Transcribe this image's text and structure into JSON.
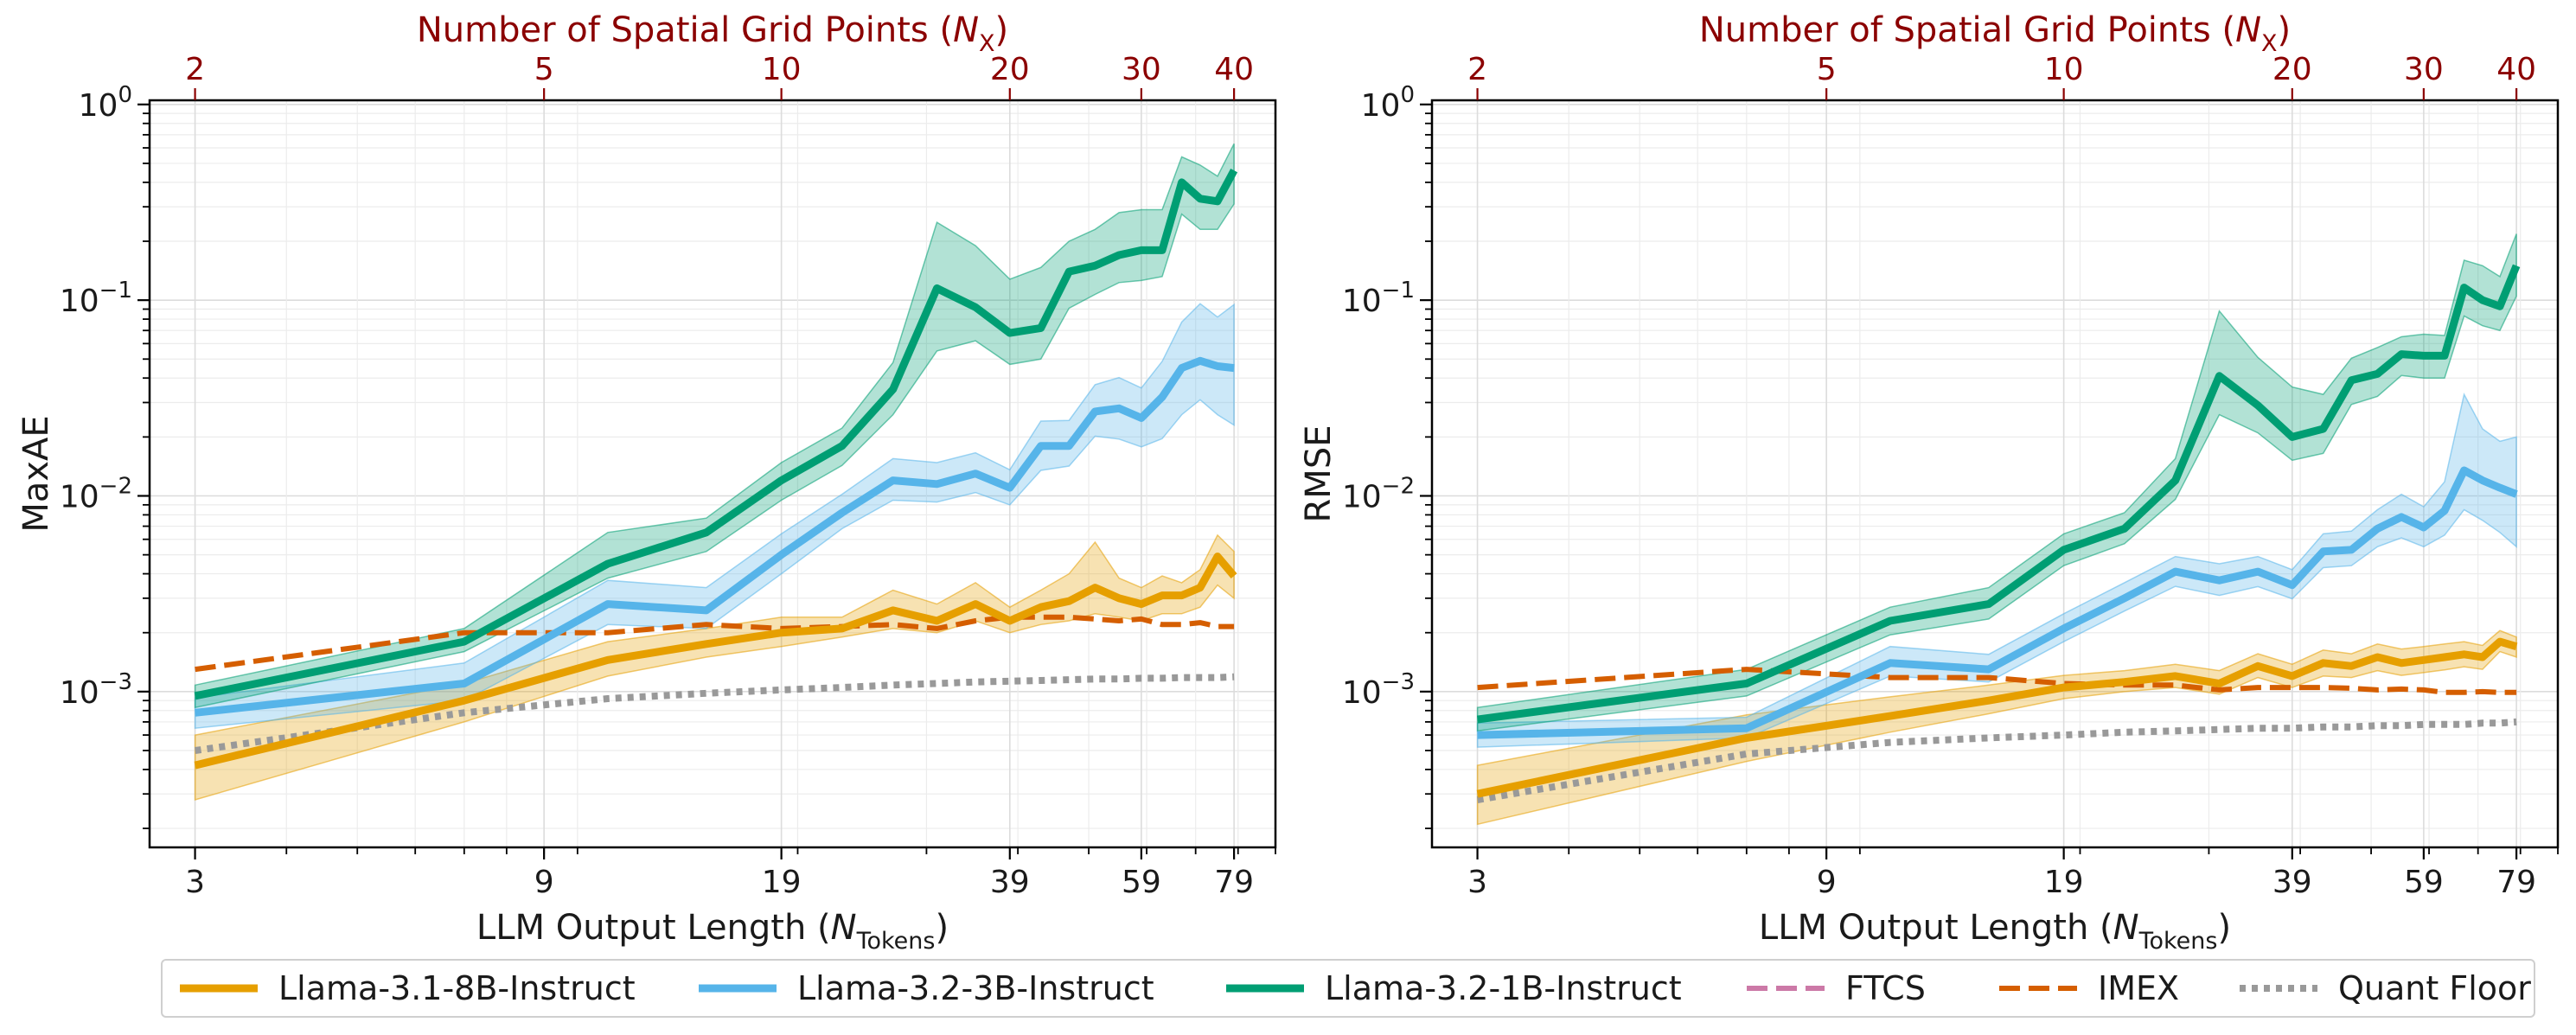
{
  "chart_data": [
    {
      "type": "line",
      "panel": "left",
      "ylabel": "MaxAE",
      "xlabel": "LLM Output Length",
      "xlabel_sym": "N",
      "xlabel_sub": "Tokens",
      "top_xlabel": "Number of Spatial Grid Points",
      "top_xlabel_sym": "N",
      "top_xlabel_sub": "X",
      "xscale": "log",
      "yscale": "log",
      "xlim": [
        2.6,
        90
      ],
      "ylim": [
        0.00016,
        1.05
      ],
      "x_ticks": [
        3,
        9,
        19,
        39,
        59,
        79
      ],
      "x_tick_labels": [
        "3",
        "9",
        "19",
        "39",
        "59",
        "79"
      ],
      "top_ticks": [
        2,
        5,
        10,
        20,
        30,
        40
      ],
      "top_tick_labels": [
        "2",
        "5",
        "10",
        "20",
        "30",
        "40"
      ],
      "y_ticks": [
        0.001,
        0.01,
        0.1,
        1
      ],
      "y_tick_labels": [
        [
          "10",
          "−3"
        ],
        [
          "10",
          "−2"
        ],
        [
          "10",
          "−1"
        ],
        [
          "10",
          "0"
        ]
      ],
      "grid": true,
      "series": [
        {
          "name": "Llama-3.1-8B-Instruct",
          "style": "solid",
          "band": true,
          "x": [
            3,
            7,
            11,
            15,
            19,
            23,
            27,
            31,
            35,
            39,
            43,
            47,
            51,
            55,
            59,
            63,
            67,
            71,
            75,
            79
          ],
          "y": [
            0.00042,
            0.0009,
            0.00145,
            0.00175,
            0.002,
            0.0021,
            0.0026,
            0.0023,
            0.0028,
            0.0023,
            0.0027,
            0.0029,
            0.0034,
            0.003,
            0.0028,
            0.0031,
            0.0031,
            0.0034,
            0.0049,
            0.0039
          ],
          "lo": [
            0.00028,
            0.0007,
            0.0012,
            0.0015,
            0.0017,
            0.0019,
            0.0021,
            0.002,
            0.0023,
            0.002,
            0.0022,
            0.0023,
            0.0025,
            0.0024,
            0.0023,
            0.0025,
            0.0025,
            0.0027,
            0.0035,
            0.003
          ],
          "hi": [
            0.0006,
            0.0011,
            0.0018,
            0.0021,
            0.0024,
            0.0024,
            0.0033,
            0.0028,
            0.0036,
            0.0027,
            0.0033,
            0.004,
            0.0058,
            0.0038,
            0.0034,
            0.0039,
            0.0036,
            0.0042,
            0.0063,
            0.0052
          ]
        },
        {
          "name": "Llama-3.2-3B-Instruct",
          "style": "solid",
          "band": true,
          "x": [
            3,
            7,
            11,
            15,
            19,
            23,
            27,
            31,
            35,
            39,
            43,
            47,
            51,
            55,
            59,
            63,
            67,
            71,
            75,
            79
          ],
          "y": [
            0.00078,
            0.0011,
            0.0028,
            0.0026,
            0.005,
            0.0082,
            0.012,
            0.0115,
            0.013,
            0.011,
            0.018,
            0.018,
            0.027,
            0.028,
            0.025,
            0.032,
            0.045,
            0.049,
            0.046,
            0.045
          ],
          "lo": [
            0.00065,
            0.0009,
            0.0022,
            0.0021,
            0.004,
            0.0068,
            0.0095,
            0.0093,
            0.0104,
            0.009,
            0.0135,
            0.0142,
            0.0202,
            0.0195,
            0.0178,
            0.0196,
            0.026,
            0.031,
            0.026,
            0.023
          ],
          "hi": [
            0.00093,
            0.0014,
            0.0037,
            0.0034,
            0.0064,
            0.0102,
            0.0155,
            0.0148,
            0.0166,
            0.0136,
            0.0241,
            0.0243,
            0.037,
            0.0402,
            0.0356,
            0.0487,
            0.0773,
            0.096,
            0.082,
            0.095
          ]
        },
        {
          "name": "Llama-3.2-1B-Instruct",
          "style": "solid",
          "band": true,
          "x": [
            3,
            7,
            11,
            15,
            19,
            23,
            27,
            31,
            35,
            39,
            43,
            47,
            51,
            55,
            59,
            63,
            67,
            71,
            75,
            79
          ],
          "y": [
            0.00095,
            0.0018,
            0.0045,
            0.0065,
            0.012,
            0.018,
            0.035,
            0.115,
            0.092,
            0.068,
            0.072,
            0.14,
            0.15,
            0.17,
            0.18,
            0.18,
            0.4,
            0.33,
            0.32,
            0.46
          ],
          "lo": [
            0.00083,
            0.0016,
            0.0038,
            0.0052,
            0.0095,
            0.0143,
            0.026,
            0.055,
            0.062,
            0.047,
            0.05,
            0.091,
            0.107,
            0.123,
            0.126,
            0.132,
            0.275,
            0.23,
            0.23,
            0.31
          ],
          "hi": [
            0.00108,
            0.0021,
            0.0065,
            0.0077,
            0.0148,
            0.0222,
            0.048,
            0.25,
            0.19,
            0.128,
            0.147,
            0.2,
            0.23,
            0.28,
            0.29,
            0.29,
            0.54,
            0.49,
            0.43,
            0.63
          ]
        },
        {
          "name": "FTCS",
          "style": "dashed",
          "band": false,
          "x": [],
          "y": []
        },
        {
          "name": "IMEX",
          "style": "dashed",
          "band": false,
          "x": [
            3,
            7,
            11,
            15,
            19,
            23,
            27,
            31,
            35,
            39,
            43,
            47,
            51,
            55,
            59,
            63,
            67,
            71,
            75,
            79
          ],
          "y": [
            0.0013,
            0.002,
            0.002,
            0.0022,
            0.0021,
            0.00215,
            0.0022,
            0.0021,
            0.0023,
            0.0024,
            0.0024,
            0.0024,
            0.00235,
            0.0023,
            0.00235,
            0.0022,
            0.0022,
            0.00225,
            0.00215,
            0.00215
          ]
        },
        {
          "name": "Quant Floor",
          "style": "dotted",
          "band": false,
          "x": [
            3,
            7,
            11,
            15,
            19,
            23,
            27,
            31,
            35,
            39,
            43,
            47,
            51,
            55,
            59,
            63,
            67,
            71,
            75,
            79
          ],
          "y": [
            0.0005,
            0.00078,
            0.00092,
            0.00098,
            0.00102,
            0.00105,
            0.00108,
            0.0011,
            0.00112,
            0.00113,
            0.00114,
            0.00115,
            0.00116,
            0.00116,
            0.00117,
            0.00117,
            0.00118,
            0.00118,
            0.00118,
            0.00119
          ]
        }
      ]
    },
    {
      "type": "line",
      "panel": "right",
      "ylabel": "RMSE",
      "xlabel": "LLM Output Length",
      "xlabel_sym": "N",
      "xlabel_sub": "Tokens",
      "top_xlabel": "Number of Spatial Grid Points",
      "top_xlabel_sym": "N",
      "top_xlabel_sub": "X",
      "xscale": "log",
      "yscale": "log",
      "xlim": [
        2.6,
        90
      ],
      "ylim": [
        0.00016,
        1.05
      ],
      "x_ticks": [
        3,
        9,
        19,
        39,
        59,
        79
      ],
      "x_tick_labels": [
        "3",
        "9",
        "19",
        "39",
        "59",
        "79"
      ],
      "top_ticks": [
        2,
        5,
        10,
        20,
        30,
        40
      ],
      "top_tick_labels": [
        "2",
        "5",
        "10",
        "20",
        "30",
        "40"
      ],
      "y_ticks": [
        0.001,
        0.01,
        0.1,
        1
      ],
      "y_tick_labels": [
        [
          "10",
          "−3"
        ],
        [
          "10",
          "−2"
        ],
        [
          "10",
          "−1"
        ],
        [
          "10",
          "0"
        ]
      ],
      "grid": true,
      "series": [
        {
          "name": "Llama-3.1-8B-Instruct",
          "style": "solid",
          "band": true,
          "x": [
            3,
            7,
            11,
            15,
            19,
            23,
            27,
            31,
            35,
            39,
            43,
            47,
            51,
            55,
            59,
            63,
            67,
            71,
            75,
            79
          ],
          "y": [
            0.0003,
            0.00058,
            0.00075,
            0.0009,
            0.00105,
            0.00112,
            0.0012,
            0.0011,
            0.00135,
            0.0012,
            0.0014,
            0.00135,
            0.0015,
            0.0014,
            0.00145,
            0.0015,
            0.00155,
            0.0015,
            0.0018,
            0.0017
          ],
          "lo": [
            0.00021,
            0.00044,
            0.00062,
            0.00077,
            0.00092,
            0.001,
            0.00105,
            0.00097,
            0.00118,
            0.00105,
            0.0012,
            0.00118,
            0.00128,
            0.00121,
            0.00125,
            0.00129,
            0.00134,
            0.0013,
            0.0016,
            0.0015
          ],
          "hi": [
            0.00042,
            0.00076,
            0.00094,
            0.00108,
            0.00121,
            0.00128,
            0.00138,
            0.00128,
            0.00156,
            0.00138,
            0.00163,
            0.00156,
            0.00175,
            0.00165,
            0.0017,
            0.00175,
            0.0018,
            0.00172,
            0.00205,
            0.0019
          ]
        },
        {
          "name": "Llama-3.2-3B-Instruct",
          "style": "solid",
          "band": true,
          "x": [
            3,
            7,
            11,
            15,
            19,
            23,
            27,
            31,
            35,
            39,
            43,
            47,
            51,
            55,
            59,
            63,
            67,
            71,
            75,
            79
          ],
          "y": [
            0.0006,
            0.00065,
            0.0014,
            0.0013,
            0.0021,
            0.003,
            0.0041,
            0.0037,
            0.0041,
            0.0035,
            0.0052,
            0.0053,
            0.0068,
            0.0078,
            0.0069,
            0.0084,
            0.0135,
            0.012,
            0.011,
            0.0102
          ],
          "lo": [
            0.00052,
            0.00058,
            0.0012,
            0.00112,
            0.0018,
            0.00258,
            0.00345,
            0.0031,
            0.00344,
            0.00298,
            0.0043,
            0.0044,
            0.0055,
            0.0061,
            0.0055,
            0.0063,
            0.0085,
            0.0075,
            0.0065,
            0.0055
          ],
          "hi": [
            0.00069,
            0.00074,
            0.0017,
            0.00155,
            0.0025,
            0.0036,
            0.0049,
            0.0045,
            0.0049,
            0.0042,
            0.0064,
            0.0066,
            0.0085,
            0.0102,
            0.0088,
            0.0118,
            0.033,
            0.022,
            0.019,
            0.02
          ]
        },
        {
          "name": "Llama-3.2-1B-Instruct",
          "style": "solid",
          "band": true,
          "x": [
            3,
            7,
            11,
            15,
            19,
            23,
            27,
            31,
            35,
            39,
            43,
            47,
            51,
            55,
            59,
            63,
            67,
            71,
            75,
            79
          ],
          "y": [
            0.00072,
            0.0011,
            0.0023,
            0.0028,
            0.0053,
            0.0068,
            0.012,
            0.041,
            0.029,
            0.02,
            0.022,
            0.039,
            0.042,
            0.053,
            0.052,
            0.052,
            0.116,
            0.1,
            0.093,
            0.15
          ],
          "lo": [
            0.00063,
            0.00095,
            0.00195,
            0.00235,
            0.0044,
            0.0057,
            0.0096,
            0.026,
            0.021,
            0.0152,
            0.0165,
            0.0293,
            0.0322,
            0.0412,
            0.04,
            0.04,
            0.083,
            0.074,
            0.07,
            0.105
          ],
          "hi": [
            0.00083,
            0.0013,
            0.0027,
            0.0034,
            0.0064,
            0.0082,
            0.0155,
            0.088,
            0.051,
            0.036,
            0.033,
            0.0505,
            0.0573,
            0.065,
            0.067,
            0.066,
            0.16,
            0.15,
            0.132,
            0.218
          ]
        },
        {
          "name": "FTCS",
          "style": "dashed",
          "band": false,
          "x": [],
          "y": []
        },
        {
          "name": "IMEX",
          "style": "dashed",
          "band": false,
          "x": [
            3,
            7,
            11,
            15,
            19,
            23,
            27,
            31,
            35,
            39,
            43,
            47,
            51,
            55,
            59,
            63,
            67,
            71,
            75,
            79
          ],
          "y": [
            0.00105,
            0.0013,
            0.00118,
            0.00118,
            0.0011,
            0.00108,
            0.00108,
            0.00102,
            0.00105,
            0.00105,
            0.00105,
            0.00104,
            0.00102,
            0.00103,
            0.00102,
            0.00099,
            0.00099,
            0.001,
            0.00099,
            0.00099
          ]
        },
        {
          "name": "Quant Floor",
          "style": "dotted",
          "band": false,
          "x": [
            3,
            7,
            11,
            15,
            19,
            23,
            27,
            31,
            35,
            39,
            43,
            47,
            51,
            55,
            59,
            63,
            67,
            71,
            75,
            79
          ],
          "y": [
            0.00028,
            0.00048,
            0.00055,
            0.00058,
            0.0006,
            0.00062,
            0.00063,
            0.00064,
            0.00065,
            0.00065,
            0.00066,
            0.00066,
            0.00067,
            0.00067,
            0.00068,
            0.00068,
            0.00068,
            0.00069,
            0.00069,
            0.0007
          ]
        }
      ]
    }
  ],
  "colors": {
    "Llama-3.1-8B-Instruct": "#E69F00",
    "Llama-3.2-3B-Instruct": "#56B4E9",
    "Llama-3.2-1B-Instruct": "#009E73",
    "FTCS": "#CC79A7",
    "IMEX": "#D55E00",
    "Quant Floor": "#999999",
    "top_axis": "#8B0000"
  },
  "legend": {
    "location": "bottom-center",
    "items": [
      {
        "label": "Llama-3.1-8B-Instruct",
        "color": "#E69F00",
        "style": "solid"
      },
      {
        "label": "Llama-3.2-3B-Instruct",
        "color": "#56B4E9",
        "style": "solid"
      },
      {
        "label": "Llama-3.2-1B-Instruct",
        "color": "#009E73",
        "style": "solid"
      },
      {
        "label": "FTCS",
        "color": "#CC79A7",
        "style": "dashed"
      },
      {
        "label": "IMEX",
        "color": "#D55E00",
        "style": "dashed"
      },
      {
        "label": "Quant Floor",
        "color": "#999999",
        "style": "dotted"
      }
    ]
  }
}
